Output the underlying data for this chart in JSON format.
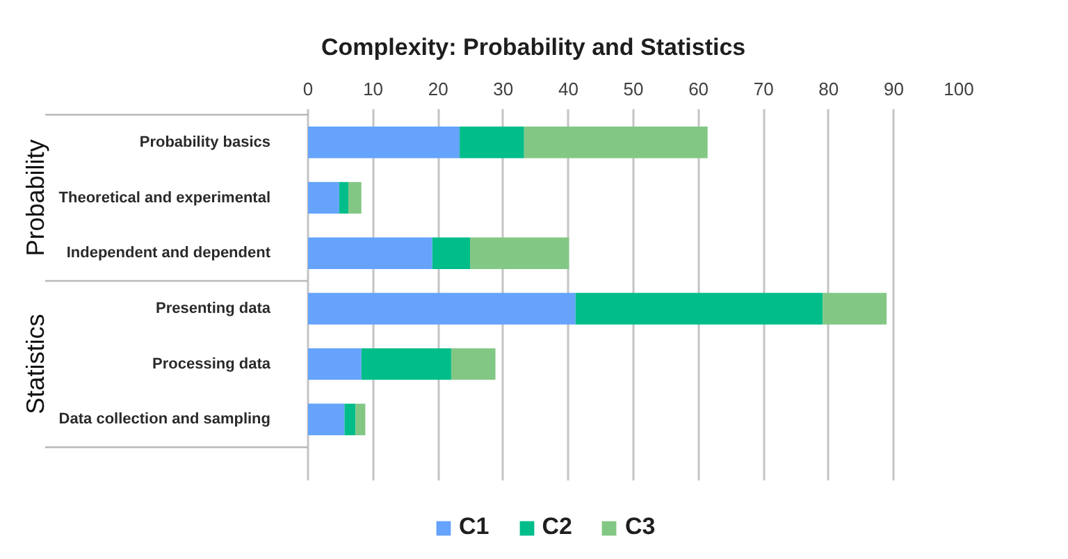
{
  "chart_data": {
    "type": "bar",
    "orientation": "horizontal",
    "stacked": true,
    "title": "Complexity: Probability and Statistics",
    "categories": [
      "Probability basics",
      "Theoretical and experimental",
      "Independent and dependent",
      "Presenting data",
      "Processing data",
      "Data collection and sampling"
    ],
    "series": [
      {
        "name": "C1",
        "color": "#65a3fc",
        "values": [
          23.3,
          4.8,
          19.1,
          41.1,
          8.2,
          5.6
        ]
      },
      {
        "name": "C2",
        "color": "#00bd8a",
        "values": [
          9.9,
          1.4,
          5.8,
          38.0,
          13.8,
          1.7
        ]
      },
      {
        "name": "C3",
        "color": "#83c785",
        "values": [
          28.2,
          2.0,
          15.2,
          9.8,
          6.8,
          1.5
        ]
      }
    ],
    "xlim": [
      0,
      100
    ],
    "xticks": [
      0,
      10,
      20,
      30,
      40,
      50,
      60,
      70,
      80,
      90,
      100
    ],
    "grid": "x",
    "legend": "bottom",
    "annotations": [
      "Probability",
      "Statistics"
    ]
  }
}
